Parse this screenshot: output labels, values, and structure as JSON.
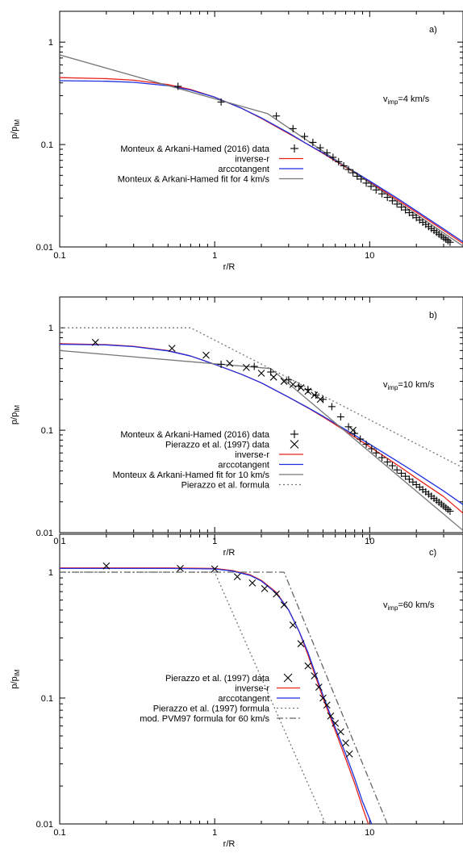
{
  "chart_data": [
    {
      "type": "line",
      "panel_label": "a)",
      "annotation": {
        "base": "v",
        "sub": "imp",
        "rest": "=4 km/s"
      },
      "xscale": "log",
      "yscale": "log",
      "xlim": [
        0.1,
        40
      ],
      "ylim": [
        0.01,
        2
      ],
      "xlabel": "r/R",
      "ylabel": {
        "base": "p/p",
        "sub": "IM"
      },
      "xticks": [
        {
          "v": 0.1,
          "label": "0.1"
        },
        {
          "v": 1,
          "label": "1"
        },
        {
          "v": 10,
          "label": "10"
        }
      ],
      "yticks": [
        {
          "v": 0.01,
          "label": "0.01"
        },
        {
          "v": 0.1,
          "label": "0.1"
        },
        {
          "v": 1,
          "label": "1"
        }
      ],
      "legend_position": "center-left",
      "series": [
        {
          "name": "Monteux & Arkani-Hamed (2016) data",
          "kind": "markers",
          "marker": "plus",
          "color": "#000000",
          "x": [
            0.58,
            1.1,
            2.5,
            3.2,
            3.8,
            4.3,
            4.8,
            5.3,
            5.8,
            6.3,
            6.8,
            7.3,
            7.8,
            8.3,
            8.8,
            9.5,
            10.2,
            11,
            12,
            13,
            14,
            15,
            16,
            17,
            18,
            19,
            20,
            21,
            22,
            23,
            24,
            25,
            26,
            27,
            28,
            29,
            30,
            31,
            32,
            33
          ],
          "y": [
            0.37,
            0.26,
            0.19,
            0.143,
            0.12,
            0.105,
            0.093,
            0.083,
            0.075,
            0.068,
            0.062,
            0.057,
            0.053,
            0.049,
            0.046,
            0.042,
            0.039,
            0.036,
            0.033,
            0.0305,
            0.0282,
            0.0262,
            0.0245,
            0.023,
            0.0216,
            0.0204,
            0.0193,
            0.0183,
            0.0174,
            0.0166,
            0.0158,
            0.0151,
            0.0145,
            0.0139,
            0.0133,
            0.0128,
            0.0123,
            0.0119,
            0.0115,
            0.0111
          ]
        },
        {
          "name": "inverse-r",
          "kind": "line",
          "color": "#e8221c",
          "x": [
            0.1,
            0.2,
            0.3,
            0.5,
            0.7,
            1,
            1.5,
            2,
            3,
            4,
            5,
            7,
            10,
            15,
            20,
            30,
            40
          ],
          "y": [
            0.45,
            0.44,
            0.425,
            0.385,
            0.345,
            0.29,
            0.225,
            0.18,
            0.128,
            0.1,
            0.082,
            0.06,
            0.043,
            0.029,
            0.0218,
            0.0145,
            0.0108
          ]
        },
        {
          "name": "arccotangent",
          "kind": "line",
          "color": "#1d2fe0",
          "x": [
            0.1,
            0.2,
            0.3,
            0.5,
            0.7,
            1,
            1.5,
            2,
            3,
            4,
            5,
            7,
            10,
            15,
            20,
            30,
            40
          ],
          "y": [
            0.42,
            0.415,
            0.405,
            0.375,
            0.34,
            0.29,
            0.225,
            0.182,
            0.13,
            0.1,
            0.083,
            0.061,
            0.044,
            0.03,
            0.0225,
            0.015,
            0.0112
          ]
        },
        {
          "name": "Monteux & Arkani-Hamed fit for 4 km/s",
          "kind": "line",
          "color": "#777777",
          "x": [
            0.1,
            2.2,
            40
          ],
          "y": [
            0.75,
            0.2,
            0.0102
          ]
        }
      ]
    },
    {
      "type": "line",
      "panel_label": "b)",
      "annotation": {
        "base": "v",
        "sub": "imp",
        "rest": "=10 km/s"
      },
      "xscale": "log",
      "yscale": "log",
      "xlim": [
        0.1,
        40
      ],
      "ylim": [
        0.01,
        2
      ],
      "xlabel": "r/R",
      "ylabel": {
        "base": "p/p",
        "sub": "IM"
      },
      "xticks": [
        {
          "v": 0.1,
          "label": "0.1"
        },
        {
          "v": 1,
          "label": "1"
        },
        {
          "v": 10,
          "label": "10"
        }
      ],
      "yticks": [
        {
          "v": 0.01,
          "label": "0.01"
        },
        {
          "v": 0.1,
          "label": "0.1"
        },
        {
          "v": 1,
          "label": "1"
        }
      ],
      "legend_position": "center-left",
      "series": [
        {
          "name": "Monteux & Arkani-Hamed (2016) data",
          "kind": "markers",
          "marker": "plus",
          "color": "#000000",
          "x": [
            1.1,
            1.8,
            2.3,
            3,
            3.5,
            4,
            4.5,
            5,
            5.7,
            6.5,
            7.3,
            8,
            8.7,
            9.5,
            10.3,
            11,
            12,
            13,
            14,
            15,
            16,
            17,
            18,
            19,
            20,
            21,
            22,
            23,
            24,
            25,
            26,
            27,
            28,
            29,
            30,
            31,
            32,
            33
          ],
          "y": [
            0.44,
            0.42,
            0.37,
            0.31,
            0.27,
            0.25,
            0.22,
            0.2,
            0.17,
            0.135,
            0.108,
            0.093,
            0.082,
            0.073,
            0.066,
            0.06,
            0.054,
            0.049,
            0.045,
            0.041,
            0.038,
            0.0355,
            0.0332,
            0.0312,
            0.0294,
            0.0278,
            0.0263,
            0.025,
            0.0238,
            0.0227,
            0.0216,
            0.0207,
            0.0198,
            0.019,
            0.0182,
            0.0175,
            0.0168,
            0.0162
          ]
        },
        {
          "name": "Pierazzo et al. (1997) data",
          "kind": "markers",
          "marker": "x",
          "color": "#000000",
          "x": [
            0.17,
            0.53,
            0.88,
            1.25,
            1.6,
            2.0,
            2.4,
            2.8,
            3.2,
            3.6,
            4.0,
            4.4,
            4.8,
            7.8
          ],
          "y": [
            0.72,
            0.63,
            0.54,
            0.45,
            0.41,
            0.36,
            0.33,
            0.3,
            0.28,
            0.26,
            0.24,
            0.22,
            0.2,
            0.1
          ]
        },
        {
          "name": "inverse-r",
          "kind": "line",
          "color": "#e8221c",
          "x": [
            0.1,
            0.2,
            0.3,
            0.5,
            0.7,
            1,
            1.5,
            2,
            3,
            4,
            5,
            7,
            10,
            15,
            20,
            30,
            40
          ],
          "y": [
            0.7,
            0.685,
            0.66,
            0.6,
            0.53,
            0.44,
            0.35,
            0.29,
            0.21,
            0.165,
            0.135,
            0.098,
            0.069,
            0.046,
            0.034,
            0.0225,
            0.0155
          ]
        },
        {
          "name": "arccotangent",
          "kind": "line",
          "color": "#1d2fe0",
          "x": [
            0.1,
            0.2,
            0.3,
            0.5,
            0.7,
            1,
            1.5,
            2,
            3,
            4,
            5,
            7,
            10,
            15,
            20,
            30,
            40
          ],
          "y": [
            0.69,
            0.68,
            0.655,
            0.595,
            0.53,
            0.44,
            0.35,
            0.29,
            0.21,
            0.166,
            0.137,
            0.101,
            0.073,
            0.05,
            0.038,
            0.0255,
            0.0188
          ]
        },
        {
          "name": "Monteux & Arkani-Hamed fit for 10 km/s",
          "kind": "line",
          "color": "#777777",
          "x": [
            0.1,
            2.3,
            40
          ],
          "y": [
            0.6,
            0.4,
            0.0105
          ]
        },
        {
          "name": "Pierazzo et al. formula",
          "kind": "line",
          "dash": "2,3",
          "color": "#777777",
          "x": [
            0.1,
            0.7,
            40
          ],
          "y": [
            1.0,
            1.0,
            0.043
          ]
        }
      ]
    },
    {
      "type": "line",
      "panel_label": "c)",
      "annotation": {
        "base": "v",
        "sub": "imp",
        "rest": "=60 km/s"
      },
      "xscale": "log",
      "yscale": "log",
      "xlim": [
        0.1,
        40
      ],
      "ylim": [
        0.01,
        2
      ],
      "xlabel": "r/R",
      "ylabel": {
        "base": "p/p",
        "sub": "IM"
      },
      "xticks": [
        {
          "v": 0.1,
          "label": "0.1"
        },
        {
          "v": 1,
          "label": "1"
        },
        {
          "v": 10,
          "label": "10"
        }
      ],
      "yticks": [
        {
          "v": 0.01,
          "label": "0.01"
        },
        {
          "v": 0.1,
          "label": "0.1"
        },
        {
          "v": 1,
          "label": "1"
        }
      ],
      "legend_position": "center",
      "series": [
        {
          "name": "Pierazzo et al. (1997) data",
          "kind": "markers",
          "marker": "x",
          "color": "#000000",
          "x": [
            0.2,
            0.6,
            1.0,
            1.4,
            1.75,
            2.1,
            2.5,
            2.8,
            3.2,
            3.6,
            4.0,
            4.4,
            4.7,
            5.0,
            5.3,
            5.6,
            6.0,
            6.5,
            7.0,
            7.4
          ],
          "y": [
            1.12,
            1.07,
            1.06,
            0.92,
            0.82,
            0.74,
            0.67,
            0.55,
            0.38,
            0.27,
            0.18,
            0.15,
            0.122,
            0.1,
            0.088,
            0.072,
            0.063,
            0.054,
            0.044,
            0.036
          ]
        },
        {
          "name": "inverse-r",
          "kind": "line",
          "color": "#e8221c",
          "x": [
            0.1,
            0.5,
            1,
            1.3,
            1.7,
            2,
            2.5,
            3,
            3.5,
            4,
            5,
            6,
            7,
            8,
            9,
            9.8
          ],
          "y": [
            1.08,
            1.08,
            1.07,
            1.03,
            0.95,
            0.86,
            0.69,
            0.5,
            0.34,
            0.22,
            0.1,
            0.055,
            0.033,
            0.021,
            0.0135,
            0.01
          ]
        },
        {
          "name": "arccotangent",
          "kind": "line",
          "color": "#1d2fe0",
          "x": [
            0.1,
            0.5,
            1,
            1.3,
            1.7,
            2,
            2.5,
            3,
            3.5,
            4,
            5,
            6,
            7,
            8,
            9,
            10.3
          ],
          "y": [
            1.07,
            1.07,
            1.06,
            1.02,
            0.94,
            0.85,
            0.68,
            0.5,
            0.34,
            0.23,
            0.105,
            0.058,
            0.036,
            0.023,
            0.015,
            0.01
          ]
        },
        {
          "name": "Pierazzo et al. (1997) formula",
          "kind": "line",
          "dash": "2,3",
          "color": "#777777",
          "x": [
            0.1,
            1.0,
            5.2
          ],
          "y": [
            1.0,
            1.0,
            0.01
          ]
        },
        {
          "name": "mod. PVM97 formula for 60 km/s",
          "kind": "line",
          "dash": "8,3,2,3",
          "color": "#666666",
          "x": [
            0.1,
            2.8,
            13
          ],
          "y": [
            1.0,
            1.0,
            0.01
          ]
        }
      ]
    }
  ]
}
